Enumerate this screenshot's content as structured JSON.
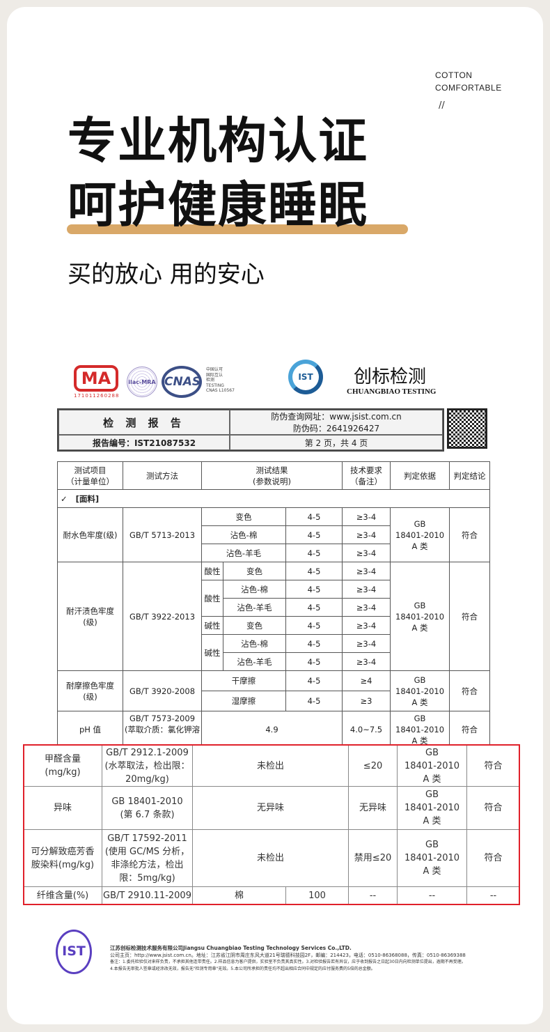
{
  "header": {
    "tag1": "COTTON",
    "tag2": "COMFORTABLE",
    "slashes": "//",
    "title1": "专业机构认证",
    "title2": "呵护健康睡眠",
    "subtitle": "买的放心 用的安心",
    "accent": "#d9a868"
  },
  "logos": {
    "cma": "CMA",
    "cma_no": "171011260288",
    "ilac": "ilac-MRA",
    "cnas": "CNAS",
    "cnas_text": "中国认可\n国际互认\n检测\nTESTING\nCNAS L10567",
    "ist": "IST",
    "brand_cn": "创标检测",
    "brand_en": "CHUANGBIAO TESTING"
  },
  "report": {
    "title": "检 测 报 告",
    "url_line": "防伪查询网址：www.jsist.com.cn",
    "code_line": "防伪码：2641926427",
    "number": "报告编号：IST21087532",
    "page": "第 2 页，共 4 页"
  },
  "table": {
    "headers": [
      "测试项目\n（计量单位）",
      "测试方法",
      "测试结果\n(参数说明)",
      "技术要求\n（备注）",
      "判定依据",
      "判定结论"
    ],
    "check": "✓",
    "section": "[面料]",
    "basis": "GB\n18401-2010\nA 类",
    "verdict": "符合",
    "water": {
      "item": "耐水色牢度(级)",
      "method": "GB/T 5713-2013",
      "rows": [
        [
          "变色",
          "4-5",
          "≥3-4"
        ],
        [
          "沾色-棉",
          "4-5",
          "≥3-4"
        ],
        [
          "沾色-羊毛",
          "4-5",
          "≥3-4"
        ]
      ]
    },
    "sweat": {
      "item": "耐汗渍色牢度\n(级)",
      "method": "GB/T 3922-2013",
      "acid": "酸性",
      "alkali": "碱性",
      "rows": [
        [
          "变色",
          "4-5",
          "≥3-4"
        ],
        [
          "沾色-棉",
          "4-5",
          "≥3-4"
        ],
        [
          "沾色-羊毛",
          "4-5",
          "≥3-4"
        ],
        [
          "变色",
          "4-5",
          "≥3-4"
        ],
        [
          "沾色-棉",
          "4-5",
          "≥3-4"
        ],
        [
          "沾色-羊毛",
          "4-5",
          "≥3-4"
        ]
      ]
    },
    "rub": {
      "item": "耐摩擦色牢度\n(级)",
      "method": "GB/T 3920-2008",
      "rows": [
        [
          "干摩擦",
          "4-5",
          "≥4"
        ],
        [
          "湿摩擦",
          "4-5",
          "≥3"
        ]
      ]
    },
    "ph": {
      "item": "pH 值",
      "method": "GB/T 7573-2009\n(萃取介质：氯化钾溶",
      "result": "4.9",
      "req": "4.0~7.5"
    }
  },
  "highlight": {
    "color": "#e0202a",
    "rows": [
      {
        "item": "甲醛含量\n(mg/kg)",
        "method": "GB/T 2912.1-2009\n(水萃取法，检出限：\n20mg/kg)",
        "result": "未检出",
        "req": "≤20",
        "basis": "GB\n18401-2010\nA 类",
        "verdict": "符合"
      },
      {
        "item": "异味",
        "method": "GB 18401-2010\n(第 6.7 条款)",
        "result": "无异味",
        "req": "无异味",
        "basis": "GB\n18401-2010\nA 类",
        "verdict": "符合"
      },
      {
        "item": "可分解致癌芳香\n胺染料(mg/kg)",
        "method": "GB/T 17592-2011\n(使用 GC/MS 分析，\n非涤纶方法，检出\n限：5mg/kg)",
        "result": "未检出",
        "req": "禁用≤20",
        "basis": "GB\n18401-2010\nA 类",
        "verdict": "符合"
      }
    ],
    "fiber": {
      "item": "纤维含量(%)",
      "method": "GB/T 2910.11-2009",
      "material": "棉",
      "value": "100",
      "req": "--",
      "basis": "--",
      "verdict": "--"
    }
  },
  "footer": {
    "stamp": "IST",
    "company": "江苏创标检测技术服务有限公司Jiangsu Chuangbiao Testing Technology Services Co.,LTD.",
    "line1": "公司主页：http://www.jsist.com.cn。地址：江苏省江阴市周庄东风大道21号瑞德科技园2F，邮编：214423，电话：0510-86368088，传真：0510-86369388",
    "line2": "备注：1.委托检验仅对来样负责，不承担其他连带责任。2.样品信息为客户提供，实验室不负责其真实性。3.对检验报告若有异议，应于收到报告之日起30日内向检测单位提出，逾期不再受理。",
    "line3": "4.本报告无审批人签章或经涂改无效，报告无\"检测专用章\"无效。5.本公司所承担的责任均不超出相应合同中规定的应付服务费的5倍的总金额。"
  }
}
